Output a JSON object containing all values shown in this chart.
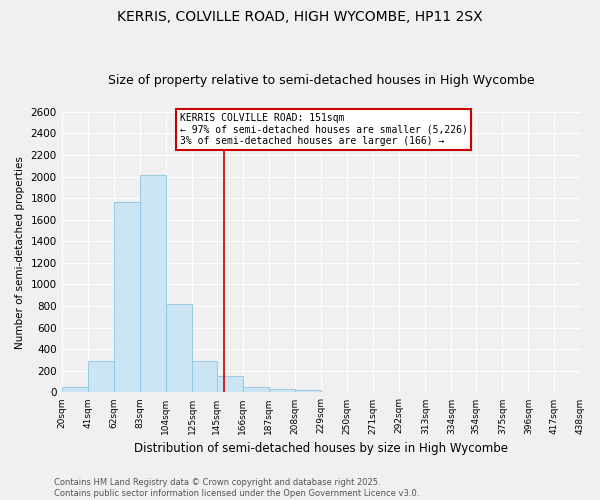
{
  "title": "KERRIS, COLVILLE ROAD, HIGH WYCOMBE, HP11 2SX",
  "subtitle": "Size of property relative to semi-detached houses in High Wycombe",
  "xlabel": "Distribution of semi-detached houses by size in High Wycombe",
  "ylabel": "Number of semi-detached properties",
  "bin_labels": [
    "20sqm",
    "41sqm",
    "62sqm",
    "83sqm",
    "104sqm",
    "125sqm",
    "145sqm",
    "166sqm",
    "187sqm",
    "208sqm",
    "229sqm",
    "250sqm",
    "271sqm",
    "292sqm",
    "313sqm",
    "334sqm",
    "354sqm",
    "375sqm",
    "396sqm",
    "417sqm",
    "438sqm"
  ],
  "bin_edges": [
    20,
    41,
    62,
    83,
    104,
    125,
    145,
    166,
    187,
    208,
    229,
    250,
    271,
    292,
    313,
    334,
    354,
    375,
    396,
    417,
    438
  ],
  "bar_heights": [
    50,
    295,
    1760,
    2010,
    820,
    290,
    155,
    50,
    35,
    20,
    0,
    0,
    0,
    0,
    0,
    0,
    0,
    0,
    0,
    0
  ],
  "bar_color": "#cce5f5",
  "bar_edge_color": "#90c4e0",
  "vline_x": 151,
  "vline_color": "#cc0000",
  "annotation_title": "KERRIS COLVILLE ROAD: 151sqm",
  "annotation_line1": "← 97% of semi-detached houses are smaller (5,226)",
  "annotation_line2": "3% of semi-detached houses are larger (166) →",
  "annotation_box_color": "#ffffff",
  "annotation_box_edge": "#cc0000",
  "ylim": [
    0,
    2600
  ],
  "yticks": [
    0,
    200,
    400,
    600,
    800,
    1000,
    1200,
    1400,
    1600,
    1800,
    2000,
    2200,
    2400,
    2600
  ],
  "footnote1": "Contains HM Land Registry data © Crown copyright and database right 2025.",
  "footnote2": "Contains public sector information licensed under the Open Government Licence v3.0.",
  "bg_color": "#f0f0f0",
  "grid_color": "#ffffff",
  "title_fontsize": 10,
  "subtitle_fontsize": 9
}
